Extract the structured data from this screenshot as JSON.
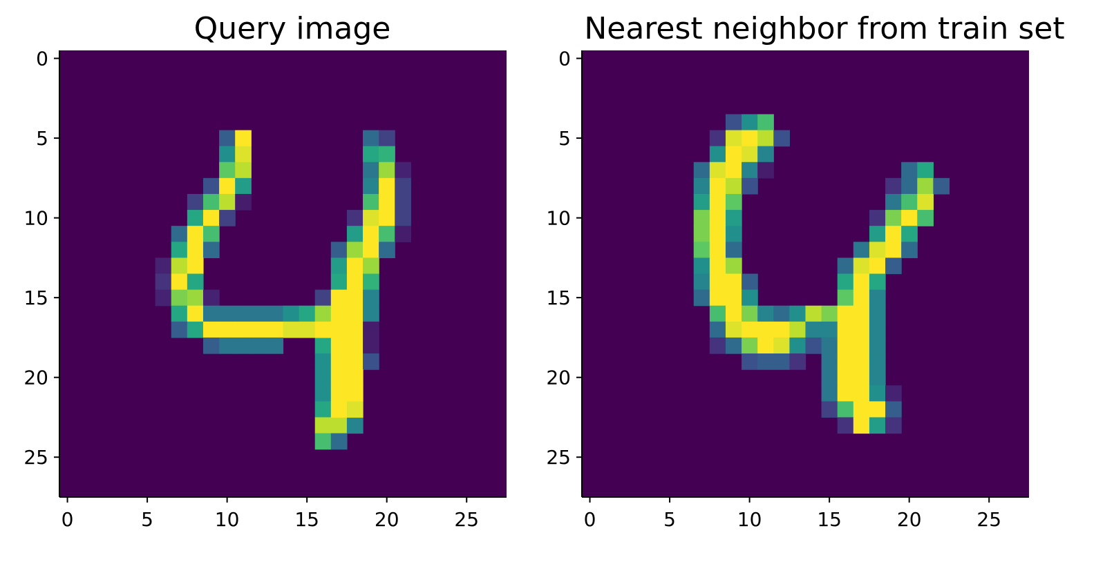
{
  "chart_data": [
    {
      "type": "heatmap",
      "title": "Query image",
      "colormap": "viridis",
      "shape": [
        28,
        28
      ],
      "xticks": [
        0,
        5,
        10,
        15,
        20,
        25
      ],
      "yticks": [
        0,
        5,
        10,
        15,
        20,
        25
      ],
      "xlim": [
        -0.5,
        27.5
      ],
      "ylim": [
        27.5,
        -0.5
      ],
      "nonzero_pixels": [
        [
          5,
          10,
          0.3
        ],
        [
          5,
          11,
          1.0
        ],
        [
          6,
          10,
          0.5
        ],
        [
          6,
          11,
          0.95
        ],
        [
          7,
          10,
          0.75
        ],
        [
          7,
          11,
          0.9
        ],
        [
          8,
          9,
          0.25
        ],
        [
          8,
          10,
          1.0
        ],
        [
          8,
          11,
          0.55
        ],
        [
          9,
          8,
          0.2
        ],
        [
          9,
          9,
          0.7
        ],
        [
          9,
          10,
          0.9
        ],
        [
          9,
          11,
          0.08
        ],
        [
          10,
          8,
          0.6
        ],
        [
          10,
          9,
          1.0
        ],
        [
          10,
          10,
          0.2
        ],
        [
          11,
          7,
          0.35
        ],
        [
          11,
          8,
          1.0
        ],
        [
          11,
          9,
          0.7
        ],
        [
          12,
          7,
          0.6
        ],
        [
          12,
          8,
          1.0
        ],
        [
          12,
          9,
          0.35
        ],
        [
          13,
          6,
          0.1
        ],
        [
          13,
          7,
          0.9
        ],
        [
          13,
          8,
          1.0
        ],
        [
          14,
          6,
          0.15
        ],
        [
          14,
          7,
          1.0
        ],
        [
          14,
          8,
          0.6
        ],
        [
          15,
          6,
          0.1
        ],
        [
          15,
          7,
          0.8
        ],
        [
          15,
          8,
          0.85
        ],
        [
          15,
          9,
          0.1
        ],
        [
          16,
          7,
          0.6
        ],
        [
          16,
          8,
          1.0
        ],
        [
          16,
          9,
          0.4
        ],
        [
          16,
          10,
          0.4
        ],
        [
          16,
          11,
          0.4
        ],
        [
          16,
          12,
          0.4
        ],
        [
          16,
          13,
          0.4
        ],
        [
          16,
          14,
          0.5
        ],
        [
          16,
          15,
          0.6
        ],
        [
          17,
          7,
          0.3
        ],
        [
          17,
          8,
          0.6
        ],
        [
          17,
          9,
          1.0
        ],
        [
          17,
          10,
          1.0
        ],
        [
          17,
          11,
          1.0
        ],
        [
          17,
          12,
          1.0
        ],
        [
          17,
          13,
          1.0
        ],
        [
          17,
          14,
          0.95
        ],
        [
          17,
          15,
          0.95
        ],
        [
          18,
          9,
          0.3
        ],
        [
          18,
          10,
          0.4
        ],
        [
          18,
          11,
          0.4
        ],
        [
          18,
          12,
          0.4
        ],
        [
          18,
          13,
          0.4
        ],
        [
          18,
          16,
          0.6
        ],
        [
          19,
          16,
          0.5
        ],
        [
          20,
          16,
          0.5
        ],
        [
          21,
          16,
          0.5
        ],
        [
          22,
          16,
          0.6
        ],
        [
          23,
          16,
          0.9
        ],
        [
          23,
          17,
          0.9
        ],
        [
          23,
          18,
          0.45
        ],
        [
          24,
          16,
          0.7
        ],
        [
          24,
          17,
          0.35
        ],
        [
          5,
          19,
          0.35
        ],
        [
          5,
          20,
          0.2
        ],
        [
          6,
          19,
          0.6
        ],
        [
          6,
          20,
          0.65
        ],
        [
          7,
          19,
          0.4
        ],
        [
          7,
          20,
          0.85
        ],
        [
          7,
          21,
          0.1
        ],
        [
          8,
          19,
          0.45
        ],
        [
          8,
          20,
          1.0
        ],
        [
          8,
          21,
          0.2
        ],
        [
          9,
          19,
          0.7
        ],
        [
          9,
          20,
          1.0
        ],
        [
          9,
          21,
          0.2
        ],
        [
          10,
          18,
          0.15
        ],
        [
          10,
          19,
          0.95
        ],
        [
          10,
          20,
          1.0
        ],
        [
          10,
          21,
          0.2
        ],
        [
          11,
          18,
          0.55
        ],
        [
          11,
          19,
          1.0
        ],
        [
          11,
          20,
          0.7
        ],
        [
          11,
          21,
          0.08
        ],
        [
          12,
          17,
          0.3
        ],
        [
          12,
          18,
          0.85
        ],
        [
          12,
          19,
          1.0
        ],
        [
          12,
          20,
          0.35
        ],
        [
          13,
          17,
          0.55
        ],
        [
          13,
          18,
          1.0
        ],
        [
          13,
          19,
          0.85
        ],
        [
          14,
          17,
          0.6
        ],
        [
          14,
          18,
          1.0
        ],
        [
          14,
          19,
          0.65
        ],
        [
          15,
          16,
          0.2
        ],
        [
          15,
          17,
          1.0
        ],
        [
          15,
          18,
          1.0
        ],
        [
          15,
          19,
          0.45
        ],
        [
          16,
          16,
          0.85
        ],
        [
          16,
          17,
          1.0
        ],
        [
          16,
          18,
          1.0
        ],
        [
          16,
          19,
          0.45
        ],
        [
          17,
          16,
          1.0
        ],
        [
          17,
          17,
          1.0
        ],
        [
          17,
          18,
          1.0
        ],
        [
          17,
          19,
          0.08
        ],
        [
          18,
          17,
          1.0
        ],
        [
          18,
          18,
          1.0
        ],
        [
          18,
          19,
          0.08
        ],
        [
          19,
          17,
          1.0
        ],
        [
          19,
          18,
          1.0
        ],
        [
          19,
          19,
          0.25
        ],
        [
          20,
          17,
          1.0
        ],
        [
          20,
          18,
          1.0
        ],
        [
          21,
          17,
          1.0
        ],
        [
          21,
          18,
          1.0
        ],
        [
          22,
          17,
          1.0
        ],
        [
          22,
          18,
          0.95
        ]
      ]
    },
    {
      "type": "heatmap",
      "title": "Nearest neighbor from train set",
      "colormap": "viridis",
      "shape": [
        28,
        28
      ],
      "xticks": [
        0,
        5,
        10,
        15,
        20,
        25
      ],
      "yticks": [
        0,
        5,
        10,
        15,
        20,
        25
      ],
      "xlim": [
        -0.5,
        27.5
      ],
      "ylim": [
        27.5,
        -0.5
      ],
      "nonzero_pixels": [
        [
          4,
          9,
          0.25
        ],
        [
          4,
          10,
          0.5
        ],
        [
          4,
          11,
          0.7
        ],
        [
          5,
          8,
          0.15
        ],
        [
          5,
          9,
          0.95
        ],
        [
          5,
          10,
          1.0
        ],
        [
          5,
          11,
          0.9
        ],
        [
          5,
          12,
          0.25
        ],
        [
          6,
          8,
          0.5
        ],
        [
          6,
          9,
          1.0
        ],
        [
          6,
          10,
          0.95
        ],
        [
          6,
          11,
          0.45
        ],
        [
          7,
          7,
          0.35
        ],
        [
          7,
          8,
          0.95
        ],
        [
          7,
          9,
          1.0
        ],
        [
          7,
          10,
          0.45
        ],
        [
          7,
          11,
          0.08
        ],
        [
          8,
          7,
          0.45
        ],
        [
          8,
          8,
          1.0
        ],
        [
          8,
          9,
          0.9
        ],
        [
          8,
          10,
          0.25
        ],
        [
          9,
          7,
          0.55
        ],
        [
          9,
          8,
          1.0
        ],
        [
          9,
          9,
          0.75
        ],
        [
          10,
          7,
          0.8
        ],
        [
          10,
          8,
          1.0
        ],
        [
          10,
          9,
          0.55
        ],
        [
          11,
          7,
          0.8
        ],
        [
          11,
          8,
          1.0
        ],
        [
          11,
          9,
          0.5
        ],
        [
          12,
          7,
          0.75
        ],
        [
          12,
          8,
          1.0
        ],
        [
          12,
          9,
          0.35
        ],
        [
          13,
          7,
          0.5
        ],
        [
          13,
          8,
          1.0
        ],
        [
          13,
          9,
          0.85
        ],
        [
          14,
          7,
          0.45
        ],
        [
          14,
          8,
          1.0
        ],
        [
          14,
          9,
          1.0
        ],
        [
          14,
          10,
          0.3
        ],
        [
          15,
          7,
          0.35
        ],
        [
          15,
          8,
          1.0
        ],
        [
          15,
          9,
          1.0
        ],
        [
          15,
          10,
          0.5
        ],
        [
          16,
          8,
          0.7
        ],
        [
          16,
          9,
          1.0
        ],
        [
          16,
          10,
          0.8
        ],
        [
          16,
          11,
          0.45
        ],
        [
          16,
          12,
          0.35
        ],
        [
          16,
          13,
          0.5
        ],
        [
          16,
          14,
          0.9
        ],
        [
          16,
          15,
          0.8
        ],
        [
          17,
          8,
          0.35
        ],
        [
          17,
          9,
          0.95
        ],
        [
          17,
          10,
          1.0
        ],
        [
          17,
          11,
          1.0
        ],
        [
          17,
          12,
          1.0
        ],
        [
          17,
          13,
          0.9
        ],
        [
          17,
          14,
          0.45
        ],
        [
          18,
          8,
          0.15
        ],
        [
          18,
          9,
          0.35
        ],
        [
          18,
          10,
          0.8
        ],
        [
          18,
          11,
          1.0
        ],
        [
          18,
          12,
          0.95
        ],
        [
          18,
          13,
          0.5
        ],
        [
          18,
          14,
          0.25
        ],
        [
          19,
          10,
          0.25
        ],
        [
          19,
          11,
          0.3
        ],
        [
          19,
          12,
          0.3
        ],
        [
          19,
          13,
          0.15
        ],
        [
          7,
          20,
          0.35
        ],
        [
          7,
          21,
          0.6
        ],
        [
          8,
          19,
          0.15
        ],
        [
          8,
          20,
          0.35
        ],
        [
          8,
          21,
          0.85
        ],
        [
          8,
          22,
          0.3
        ],
        [
          9,
          19,
          0.4
        ],
        [
          9,
          20,
          0.7
        ],
        [
          9,
          21,
          0.95
        ],
        [
          10,
          18,
          0.15
        ],
        [
          10,
          19,
          0.8
        ],
        [
          10,
          20,
          1.0
        ],
        [
          10,
          21,
          0.7
        ],
        [
          11,
          18,
          0.55
        ],
        [
          11,
          19,
          1.0
        ],
        [
          11,
          20,
          0.6
        ],
        [
          12,
          17,
          0.4
        ],
        [
          12,
          18,
          0.95
        ],
        [
          12,
          19,
          1.0
        ],
        [
          12,
          20,
          0.35
        ],
        [
          13,
          16,
          0.35
        ],
        [
          13,
          17,
          0.95
        ],
        [
          13,
          18,
          1.0
        ],
        [
          13,
          19,
          0.3
        ],
        [
          14,
          16,
          0.6
        ],
        [
          14,
          17,
          1.0
        ],
        [
          14,
          18,
          0.6
        ],
        [
          15,
          16,
          0.75
        ],
        [
          15,
          17,
          1.0
        ],
        [
          15,
          18,
          0.45
        ],
        [
          16,
          16,
          1.0
        ],
        [
          16,
          17,
          1.0
        ],
        [
          16,
          18,
          0.45
        ],
        [
          17,
          15,
          0.45
        ],
        [
          17,
          16,
          1.0
        ],
        [
          17,
          17,
          1.0
        ],
        [
          17,
          18,
          0.45
        ],
        [
          18,
          15,
          0.4
        ],
        [
          18,
          16,
          1.0
        ],
        [
          18,
          17,
          1.0
        ],
        [
          18,
          18,
          0.45
        ],
        [
          19,
          15,
          0.4
        ],
        [
          19,
          16,
          1.0
        ],
        [
          19,
          17,
          1.0
        ],
        [
          19,
          18,
          0.45
        ],
        [
          20,
          15,
          0.4
        ],
        [
          20,
          16,
          1.0
        ],
        [
          20,
          17,
          1.0
        ],
        [
          20,
          18,
          0.45
        ],
        [
          21,
          15,
          0.4
        ],
        [
          21,
          16,
          1.0
        ],
        [
          21,
          17,
          1.0
        ],
        [
          21,
          18,
          0.5
        ],
        [
          21,
          19,
          0.1
        ],
        [
          22,
          15,
          0.2
        ],
        [
          22,
          16,
          0.7
        ],
        [
          22,
          17,
          1.0
        ],
        [
          22,
          18,
          1.0
        ],
        [
          22,
          19,
          0.3
        ],
        [
          23,
          16,
          0.15
        ],
        [
          23,
          17,
          1.0
        ],
        [
          23,
          18,
          0.55
        ],
        [
          23,
          19,
          0.15
        ]
      ]
    }
  ]
}
